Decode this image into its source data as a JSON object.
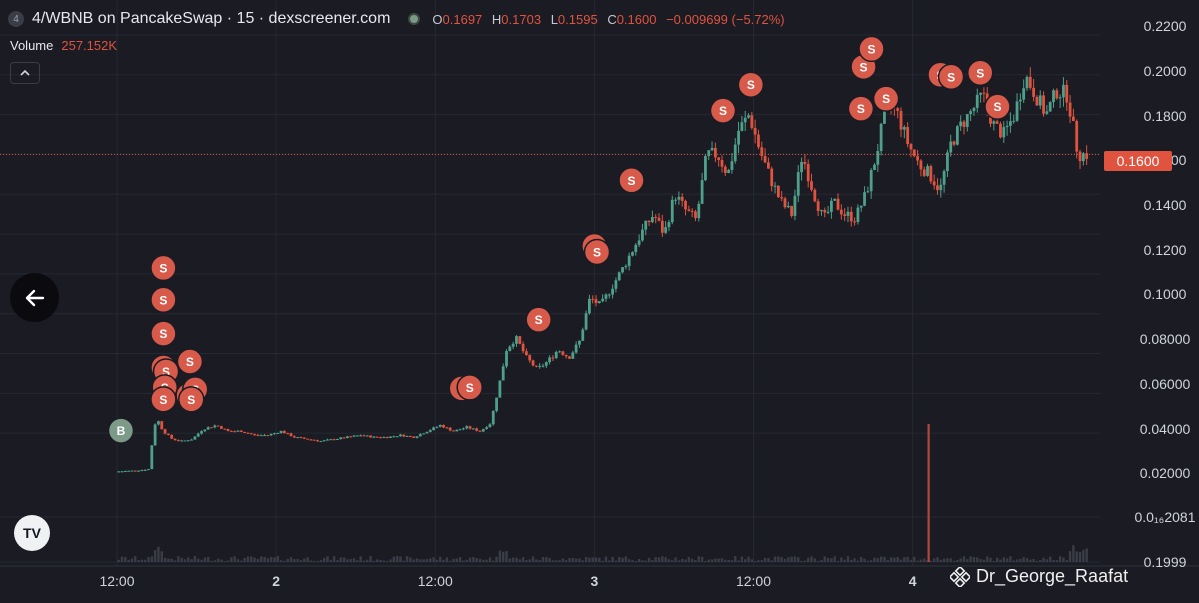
{
  "header": {
    "badge": "4",
    "title": "4/WBNB on PancakeSwap · 15 · dexscreener.com",
    "ohlc": [
      {
        "key": "O",
        "value": "0.1697"
      },
      {
        "key": "H",
        "value": "0.1703"
      },
      {
        "key": "L",
        "value": "0.1595"
      },
      {
        "key": "C",
        "value": "0.1600"
      }
    ],
    "change": "−0.009699 (−5.72%)"
  },
  "volume": {
    "label": "Volume",
    "value": "257.152K"
  },
  "current_price": "0.1600",
  "watermark": "Dr_George_Raafat",
  "logo_label": "TV",
  "colors": {
    "up": "#4ea08a",
    "down": "#e0533f",
    "buy_marker": "#7d9987",
    "sell_marker": "#d75a4a",
    "background": "#1a1b23"
  },
  "chart_data": {
    "type": "candlestick",
    "y_tick_labels": [
      "0.2200",
      "0.2000",
      "0.1800",
      "0.1600",
      "0.1400",
      "0.1200",
      "0.1000",
      "0.08000",
      "0.06000",
      "0.04000",
      "0.02000",
      "0.0₁₆2081",
      "0.1999"
    ],
    "y_ticks": [
      0.22,
      0.2,
      0.18,
      0.16,
      0.14,
      0.12,
      0.1,
      0.08,
      0.06,
      0.04,
      0.02
    ],
    "x_tick_labels": [
      "12:00",
      "2",
      "12:00",
      "3",
      "12:00",
      "4"
    ],
    "x_ticks_hour": [
      12,
      24,
      36,
      48,
      60,
      72
    ],
    "x_range_hour": [
      12,
      85
    ],
    "ylim": [
      0.0,
      0.2245
    ],
    "grid": true,
    "price_line": 0.16,
    "series": [
      {
        "hour": 12.0,
        "price": 0.0007
      },
      {
        "hour": 13.5,
        "price": 0.0012
      },
      {
        "hour": 14.6,
        "price": 0.002
      },
      {
        "hour": 14.8,
        "price": 0.018
      },
      {
        "hour": 15.1,
        "price": 0.028
      },
      {
        "hour": 15.6,
        "price": 0.021
      },
      {
        "hour": 16.3,
        "price": 0.017
      },
      {
        "hour": 17.0,
        "price": 0.016
      },
      {
        "hour": 17.8,
        "price": 0.017
      },
      {
        "hour": 18.6,
        "price": 0.022
      },
      {
        "hour": 19.6,
        "price": 0.024
      },
      {
        "hour": 20.5,
        "price": 0.021
      },
      {
        "hour": 21.5,
        "price": 0.021
      },
      {
        "hour": 22.5,
        "price": 0.019
      },
      {
        "hour": 23.5,
        "price": 0.019
      },
      {
        "hour": 24.5,
        "price": 0.021
      },
      {
        "hour": 25.5,
        "price": 0.018
      },
      {
        "hour": 26.5,
        "price": 0.017
      },
      {
        "hour": 27.5,
        "price": 0.016
      },
      {
        "hour": 28.5,
        "price": 0.017
      },
      {
        "hour": 29.5,
        "price": 0.018
      },
      {
        "hour": 30.5,
        "price": 0.019
      },
      {
        "hour": 31.5,
        "price": 0.018
      },
      {
        "hour": 32.5,
        "price": 0.018
      },
      {
        "hour": 33.5,
        "price": 0.019
      },
      {
        "hour": 34.5,
        "price": 0.018
      },
      {
        "hour": 35.5,
        "price": 0.021
      },
      {
        "hour": 36.5,
        "price": 0.024
      },
      {
        "hour": 37.5,
        "price": 0.021
      },
      {
        "hour": 38.5,
        "price": 0.023
      },
      {
        "hour": 39.5,
        "price": 0.021
      },
      {
        "hour": 40.3,
        "price": 0.025
      },
      {
        "hour": 40.9,
        "price": 0.043
      },
      {
        "hour": 41.5,
        "price": 0.062
      },
      {
        "hour": 42.2,
        "price": 0.068
      },
      {
        "hour": 43.0,
        "price": 0.058
      },
      {
        "hour": 43.8,
        "price": 0.052
      },
      {
        "hour": 44.6,
        "price": 0.056
      },
      {
        "hour": 45.4,
        "price": 0.062
      },
      {
        "hour": 46.2,
        "price": 0.058
      },
      {
        "hour": 47.0,
        "price": 0.066
      },
      {
        "hour": 47.8,
        "price": 0.088
      },
      {
        "hour": 48.6,
        "price": 0.084
      },
      {
        "hour": 49.4,
        "price": 0.093
      },
      {
        "hour": 50.2,
        "price": 0.102
      },
      {
        "hour": 51.0,
        "price": 0.112
      },
      {
        "hour": 51.8,
        "price": 0.122
      },
      {
        "hour": 52.6,
        "price": 0.13
      },
      {
        "hour": 53.4,
        "price": 0.12
      },
      {
        "hour": 54.2,
        "price": 0.14
      },
      {
        "hour": 55.0,
        "price": 0.132
      },
      {
        "hour": 55.8,
        "price": 0.127
      },
      {
        "hour": 56.6,
        "price": 0.16
      },
      {
        "hour": 57.4,
        "price": 0.16
      },
      {
        "hour": 58.2,
        "price": 0.15
      },
      {
        "hour": 59.0,
        "price": 0.172
      },
      {
        "hour": 59.8,
        "price": 0.18
      },
      {
        "hour": 60.6,
        "price": 0.162
      },
      {
        "hour": 61.4,
        "price": 0.148
      },
      {
        "hour": 62.2,
        "price": 0.136
      },
      {
        "hour": 63.0,
        "price": 0.13
      },
      {
        "hour": 63.8,
        "price": 0.16
      },
      {
        "hour": 64.6,
        "price": 0.142
      },
      {
        "hour": 65.4,
        "price": 0.127
      },
      {
        "hour": 66.2,
        "price": 0.136
      },
      {
        "hour": 67.0,
        "price": 0.13
      },
      {
        "hour": 67.8,
        "price": 0.128
      },
      {
        "hour": 68.6,
        "price": 0.14
      },
      {
        "hour": 69.4,
        "price": 0.16
      },
      {
        "hour": 70.2,
        "price": 0.187
      },
      {
        "hour": 71.0,
        "price": 0.18
      },
      {
        "hour": 71.8,
        "price": 0.165
      },
      {
        "hour": 72.6,
        "price": 0.155
      },
      {
        "hour": 73.4,
        "price": 0.15
      },
      {
        "hour": 74.2,
        "price": 0.142
      },
      {
        "hour": 75.0,
        "price": 0.165
      },
      {
        "hour": 75.8,
        "price": 0.175
      },
      {
        "hour": 76.6,
        "price": 0.182
      },
      {
        "hour": 77.4,
        "price": 0.19
      },
      {
        "hour": 78.2,
        "price": 0.175
      },
      {
        "hour": 79.0,
        "price": 0.17
      },
      {
        "hour": 79.8,
        "price": 0.18
      },
      {
        "hour": 80.6,
        "price": 0.2
      },
      {
        "hour": 81.4,
        "price": 0.19
      },
      {
        "hour": 82.2,
        "price": 0.18
      },
      {
        "hour": 83.0,
        "price": 0.192
      },
      {
        "hour": 83.8,
        "price": 0.19
      },
      {
        "hour": 84.6,
        "price": 0.16
      }
    ],
    "volume_spike": {
      "hour": 73.2,
      "label": ""
    },
    "markers": [
      {
        "type": "B",
        "hour": 12.3,
        "price": 0.0213
      },
      {
        "type": "S",
        "hour": 15.5,
        "price": 0.103
      },
      {
        "type": "S",
        "hour": 15.5,
        "price": 0.087
      },
      {
        "type": "S",
        "hour": 15.5,
        "price": 0.07
      },
      {
        "type": "S",
        "hour": 15.5,
        "price": 0.053
      },
      {
        "type": "S",
        "hour": 15.7,
        "price": 0.051
      },
      {
        "type": "S",
        "hour": 15.6,
        "price": 0.043
      },
      {
        "type": "S",
        "hour": 15.5,
        "price": 0.037
      },
      {
        "type": "S",
        "hour": 17.5,
        "price": 0.056
      },
      {
        "type": "S",
        "hour": 17.4,
        "price": 0.039
      },
      {
        "type": "S",
        "hour": 17.9,
        "price": 0.042
      },
      {
        "type": "S",
        "hour": 17.6,
        "price": 0.037
      },
      {
        "type": "S",
        "hour": 38.0,
        "price": 0.0425
      },
      {
        "type": "S",
        "hour": 38.6,
        "price": 0.043
      },
      {
        "type": "S",
        "hour": 43.8,
        "price": 0.077
      },
      {
        "type": "S",
        "hour": 48.0,
        "price": 0.114
      },
      {
        "type": "S",
        "hour": 48.2,
        "price": 0.111
      },
      {
        "type": "S",
        "hour": 50.8,
        "price": 0.147
      },
      {
        "type": "S",
        "hour": 57.7,
        "price": 0.182
      },
      {
        "type": "S",
        "hour": 59.8,
        "price": 0.195
      },
      {
        "type": "S",
        "hour": 68.1,
        "price": 0.183
      },
      {
        "type": "S",
        "hour": 68.3,
        "price": 0.204
      },
      {
        "type": "S",
        "hour": 68.9,
        "price": 0.213
      },
      {
        "type": "S",
        "hour": 70.0,
        "price": 0.188
      },
      {
        "type": "S",
        "hour": 74.1,
        "price": 0.2
      },
      {
        "type": "S",
        "hour": 74.9,
        "price": 0.199
      },
      {
        "type": "S",
        "hour": 77.1,
        "price": 0.201
      },
      {
        "type": "S",
        "hour": 78.4,
        "price": 0.184
      }
    ]
  }
}
